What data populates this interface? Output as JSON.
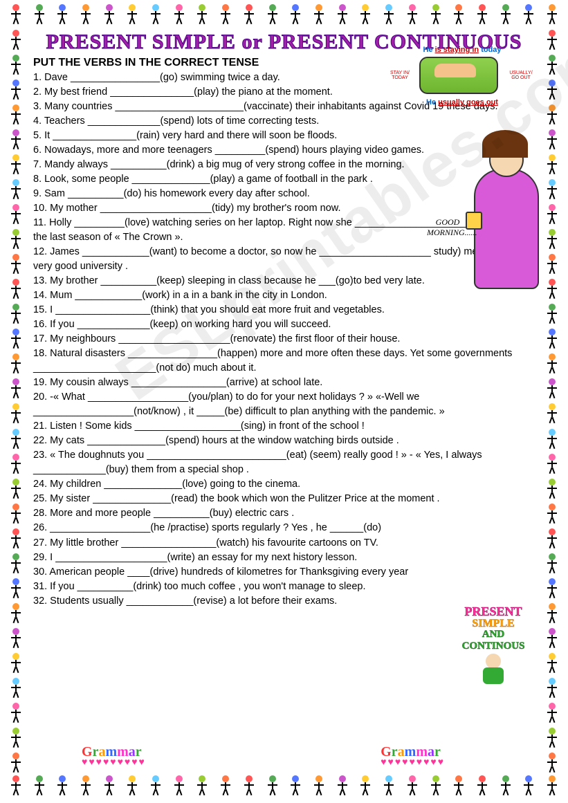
{
  "title": "PRESENT SIMPLE or PRESENT CONTINUOUS",
  "instruction": "PUT THE VERBS IN THE CORRECT TENSE",
  "hint": {
    "line1_pre": "He ",
    "line1_u": "is staying in",
    "line1_post": " today",
    "arrow_left": "STAY IN/ TODAY",
    "arrow_right": "USUALLY/ GO OUT",
    "line2_pre": "He ",
    "line2_u": "usually goes out"
  },
  "good_morning": "GOOD MORNING......",
  "side_label": {
    "l1": "PRESENT",
    "l2": "SIMPLE",
    "l3": "AND CONTINOUS"
  },
  "grammar_word": [
    "G",
    "r",
    "a",
    "m",
    "m",
    "a",
    "r"
  ],
  "watermark": "ESLprintables.com",
  "questions": [
    "1. Dave ________________(go) swimming  twice a day.",
    "2. My best friend _______________(play) the piano at the moment.",
    "3. Many countries _______________________(vaccinate) their inhabitants against Covid 19 these days.",
    "4. Teachers _____________(spend) lots of time correcting  tests.",
    "5. It _______________(rain) very hard and there will soon be floods.",
    "6. Nowadays, more and more teenagers _________(spend) hours playing video games.",
    "7. Mandy always __________(drink) a big mug of very strong coffee in the morning.",
    "8. Look, some people ______________(play)  a game of football in the park .",
    "9. Sam __________(do) his homework every day after school.",
    "10. My  mother ____________________(tidy) my brother's room  now.",
    "11. Holly _________(love) watching series on her laptop. Right now she ________________________ (watch) the last season of « The Crown ».",
    "12. James ____________(want) to become a doctor, so now he ____________________ study) medicine in a very good university .",
    "13. My brother __________(keep) sleeping in class because he ___(go)to bed very late.",
    "14. Mum ____________(work) in a in a bank in the city in London.",
    "15. I _________________(think) that you should eat more fruit and vegetables.",
    "16. If you _____________(keep) on working hard  you will succeed.",
    "17. My neighbours ____________________(renovate) the first floor of their house.",
    "18. Natural disasters ________________(happen) more and more often these days. Yet some governments ______________________(not do) much about it.",
    "19. My cousin always _________________(arrive) at school late.",
    "20. -« What __________________(you/plan) to do for your next holidays ? » «-Well we __________________(not/know) , it _____(be) difficult to plan anything with the pandemic. »",
    "21. Listen ! Some kids ___________________(sing)  in front of the school !",
    "22. My cats ______________(spend) hours at the window watching birds outside .",
    "23. « The doughnuts you _________________________(eat) (seem) really good ! » - « Yes, I always _____________(buy) them from a special shop .",
    "24. My children ______________(love) going to the cinema.",
    "25. My sister ______________(read) the book which won the Pulitzer Price at the moment .",
    "28. More and more people __________(buy) electric cars .",
    "26. __________________(he /practise) sports regularly ? Yes , he ______(do)",
    "27. My little brother _________________(watch) his favourite cartoons on TV.",
    "29. I ____________________(write) an essay  for my next history lesson.",
    "30. American people ____(drive) hundreds of kilometres for Thanksgiving every year",
    "31. If you __________(drink) too much coffee , you won't manage to sleep.",
    "32. Students usually ____________(revise) a lot before their exams."
  ],
  "border_colors": [
    "#ff5555",
    "#55aa55",
    "#5577ff",
    "#ff9933",
    "#cc55cc",
    "#ffcc33",
    "#66ccff",
    "#ff66aa",
    "#99cc33",
    "#ff7744"
  ]
}
